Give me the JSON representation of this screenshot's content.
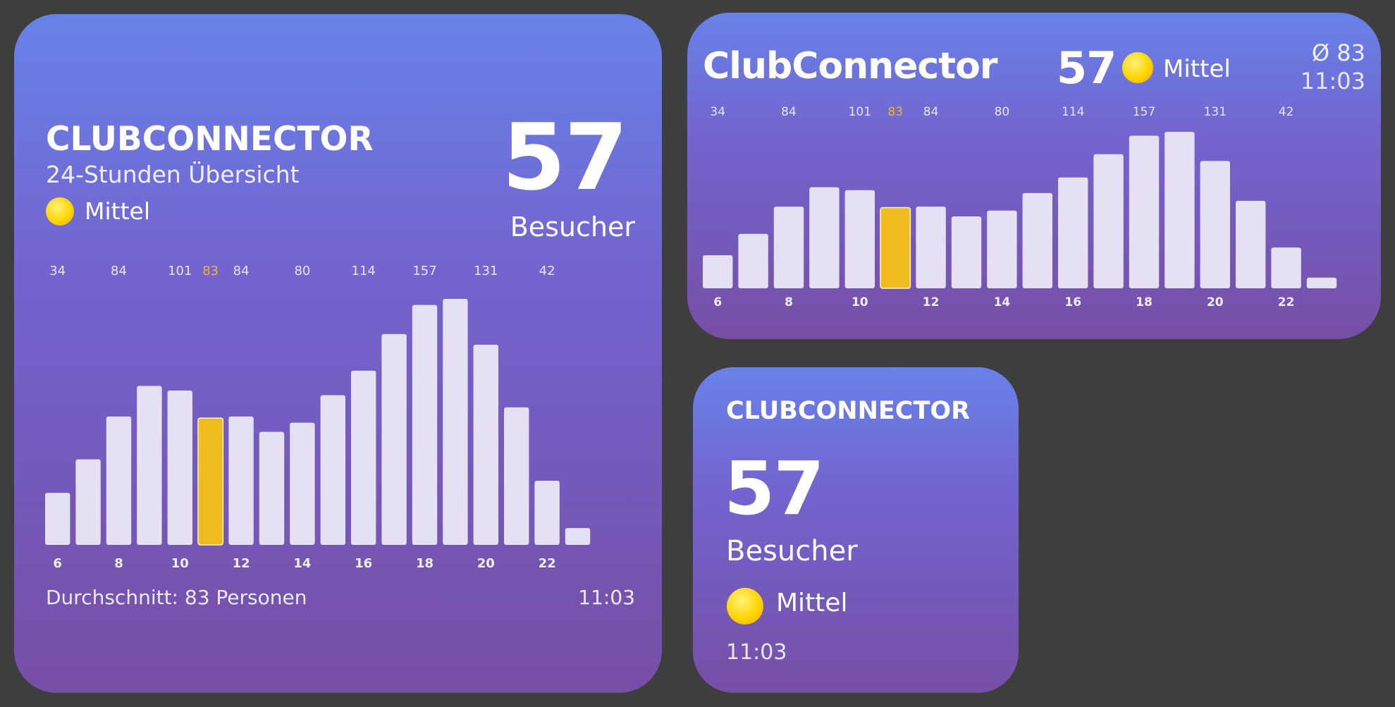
{
  "large": {
    "title": "CLUBCONNECTOR",
    "subtitle": "24-Stunden Übersicht",
    "count": "57",
    "count_label": "Besucher",
    "level_label": "Mittel",
    "level_icon": "sun-icon",
    "average_text": "Durchschnitt: 83 Personen",
    "time": "11:03"
  },
  "medium": {
    "title": "ClubConnector",
    "count": "57",
    "level_label": "Mittel",
    "level_icon": "sun-icon",
    "average": "Ø 83",
    "time": "11:03"
  },
  "small": {
    "title": "CLUBCONNECTOR",
    "count": "57",
    "count_label": "Besucher",
    "level_label": "Mittel",
    "level_icon": "sun-icon",
    "time": "11:03"
  },
  "colors": {
    "bar": "#e5e1f3",
    "highlight": "#f0bb1c",
    "top_label": "#e7e6f5",
    "highlight_label": "#f2b42a"
  },
  "chart_data": {
    "type": "bar",
    "hours": [
      6,
      7,
      8,
      9,
      10,
      11,
      12,
      13,
      14,
      15,
      16,
      17,
      18,
      19,
      20,
      21,
      22,
      23
    ],
    "values": [
      34,
      56,
      84,
      104,
      101,
      83,
      84,
      74,
      80,
      98,
      114,
      138,
      157,
      161,
      131,
      90,
      42,
      11
    ],
    "highlight_hour": 11,
    "x_tick_labels": [
      "6",
      "8",
      "10",
      "12",
      "14",
      "16",
      "18",
      "20",
      "22"
    ],
    "top_labels": [
      {
        "hour": 6,
        "text": "34"
      },
      {
        "hour": 8,
        "text": "84"
      },
      {
        "hour": 10,
        "text": "101"
      },
      {
        "hour": 11,
        "text": "83"
      },
      {
        "hour": 12,
        "text": "84"
      },
      {
        "hour": 14,
        "text": "80"
      },
      {
        "hour": 16,
        "text": "114"
      },
      {
        "hour": 18,
        "text": "157"
      },
      {
        "hour": 20,
        "text": "131"
      },
      {
        "hour": 22,
        "text": "42"
      }
    ],
    "ylim": [
      0,
      161
    ]
  }
}
